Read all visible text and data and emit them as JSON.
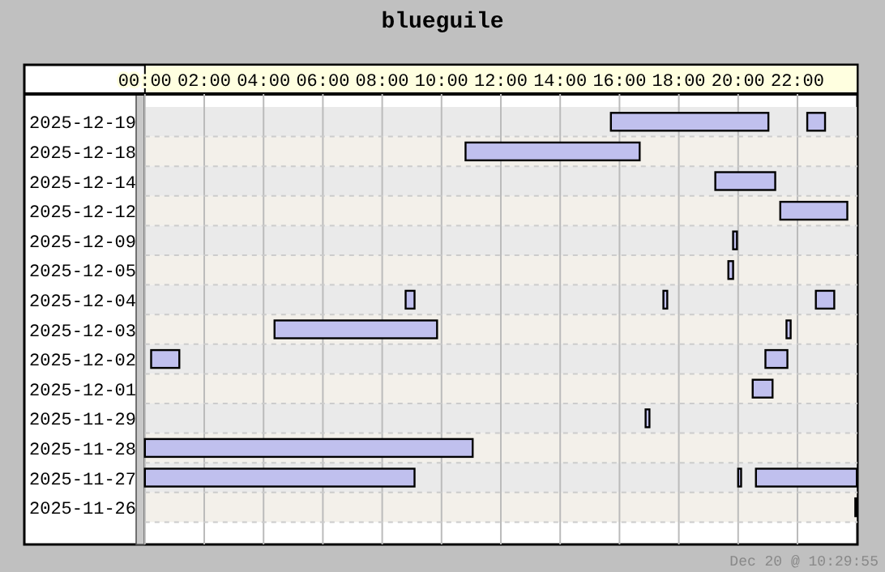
{
  "chart_data": {
    "type": "bar",
    "orientation": "horizontal",
    "title": "blueguile",
    "categories": [
      "2025-12-19",
      "2025-12-18",
      "2025-12-14",
      "2025-12-12",
      "2025-12-09",
      "2025-12-05",
      "2025-12-04",
      "2025-12-03",
      "2025-12-02",
      "2025-12-01",
      "2025-11-29",
      "2025-11-28",
      "2025-11-27",
      "2025-11-26"
    ],
    "series": [
      {
        "color": "#c0c0ee",
        "base": [
          15.71,
          10.81,
          19.23,
          21.42,
          19.83,
          19.67,
          8.79,
          4.37,
          0.21,
          20.49,
          16.88,
          0,
          0,
          23.95
        ],
        "values": [
          5.31,
          5.87,
          2.02,
          2.26,
          0.13,
          0.16,
          0.3,
          5.48,
          0.95,
          0.67,
          0.13,
          11.05,
          9.09,
          0.05
        ]
      },
      {
        "color": "#c0c0ee",
        "base": [
          22.33,
          null,
          null,
          null,
          null,
          null,
          17.48,
          21.63,
          20.92,
          null,
          null,
          null,
          20,
          null
        ],
        "values": [
          0.6,
          null,
          null,
          null,
          null,
          null,
          0.13,
          0.14,
          0.74,
          null,
          null,
          null,
          0.1,
          null
        ]
      },
      {
        "color": "#c0c0ee",
        "base": [
          null,
          null,
          null,
          null,
          null,
          null,
          22.62,
          null,
          null,
          null,
          null,
          null,
          20.6,
          null
        ],
        "values": [
          null,
          null,
          null,
          null,
          null,
          null,
          0.62,
          null,
          null,
          null,
          null,
          null,
          3.4,
          null
        ]
      }
    ],
    "xlim": [
      0,
      24
    ],
    "xticks": [
      {
        "value": 0,
        "label": "00:00"
      },
      {
        "value": 2,
        "label": "02:00"
      },
      {
        "value": 4,
        "label": "04:00"
      },
      {
        "value": 6,
        "label": "06:00"
      },
      {
        "value": 8,
        "label": "08:00"
      },
      {
        "value": 10,
        "label": "10:00"
      },
      {
        "value": 12,
        "label": "12:00"
      },
      {
        "value": 14,
        "label": "14:00"
      },
      {
        "value": 16,
        "label": "16:00"
      },
      {
        "value": 18,
        "label": "18:00"
      },
      {
        "value": 20,
        "label": "20:00"
      },
      {
        "value": 22,
        "label": "22:00"
      }
    ],
    "grid": "x",
    "annotations": [
      "Dec 20 @ 10:29:55"
    ]
  }
}
